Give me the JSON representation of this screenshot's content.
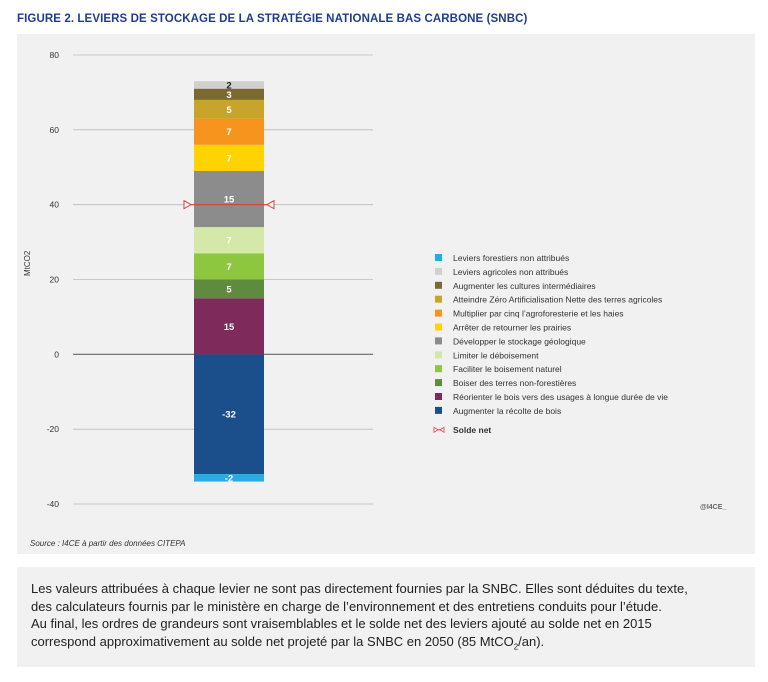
{
  "figure": {
    "title": "FIGURE 2. LEVIERS DE STOCKAGE DE LA STRATÉGIE NATIONALE BAS CARBONE (SNBC)",
    "source": "Source : I4CE à partir des données CITEPA",
    "watermark": "@I4CE_"
  },
  "paragraph": {
    "line1": "Les valeurs attribuées à chaque levier ne sont pas directement fournies par la SNBC. Elles sont déduites du texte,",
    "line2": "des calculateurs fournis par le ministère en charge de l’environnement et des entretiens conduits pour l’étude.",
    "line3": "Au final, les ordres de grandeurs sont vraisemblables et le solde net des leviers ajouté au solde net en 2015",
    "line4_pre": "correspond approximativement au solde net projeté par la SNBC en 2050 (85 MtCO",
    "line4_sub": "2",
    "line4_post": "/an)."
  },
  "chart_data": {
    "type": "bar",
    "stacked": true,
    "ylabel": "MtCO2",
    "ylim": [
      -40,
      80
    ],
    "yticks": [
      -40,
      -20,
      0,
      20,
      40,
      60,
      80
    ],
    "grid": true,
    "legend_position": "right",
    "series": [
      {
        "name": "Augmenter la récolte de bois",
        "value": -32,
        "label": "-32",
        "color": "#1a4f8b",
        "label_color": "#ffffff"
      },
      {
        "name": "Leviers forestiers non attribués",
        "value": -2,
        "label": "-2",
        "color": "#29aae1",
        "label_color": "#ffffff"
      },
      {
        "name": "Réorienter le bois vers des usages à longue durée de vie",
        "value": 15,
        "label": "15",
        "color": "#7e2a5a",
        "label_color": "#ffffff"
      },
      {
        "name": "Boiser des terres non-forestières",
        "value": 5,
        "label": "5",
        "color": "#5f8b3e",
        "label_color": "#ffffff"
      },
      {
        "name": "Faciliter le boisement naturel",
        "value": 7,
        "label": "7",
        "color": "#8dc63f",
        "label_color": "#ffffff"
      },
      {
        "name": "Limiter le déboisement",
        "value": 7,
        "label": "7",
        "color": "#d4e8a8",
        "label_color": "#ffffff"
      },
      {
        "name": "Développer le stockage géologique",
        "value": 15,
        "label": "15",
        "color": "#8c8c8c",
        "label_color": "#ffffff"
      },
      {
        "name": "Arrêter de retourner les prairies",
        "value": 7,
        "label": "7",
        "color": "#ffd200",
        "label_color": "#ffffff"
      },
      {
        "name": "Multiplier par cinq l’agroforesterie et les haies",
        "value": 7,
        "label": "7",
        "color": "#f7941d",
        "label_color": "#ffffff"
      },
      {
        "name": "Atteindre Zéro Artificialisation Nette des terres agricoles",
        "value": 5,
        "label": "5",
        "color": "#c8a52a",
        "label_color": "#ffffff"
      },
      {
        "name": "Augmenter les cultures intermédiaires",
        "value": 3,
        "label": "3",
        "color": "#7a6a2f",
        "label_color": "#ffffff"
      },
      {
        "name": "Leviers agricoles non attribués",
        "value": 2,
        "label": "2",
        "color": "#d0d0d0",
        "label_color": "#222222"
      }
    ],
    "solde_net": {
      "name": "Solde net",
      "value": 40,
      "color": "#e03c3c"
    },
    "legend": [
      {
        "label": "Leviers forestiers non attribués",
        "color": "#29aae1",
        "bold": false
      },
      {
        "label": "Leviers agricoles non attribués",
        "color": "#d0d0d0",
        "bold": false
      },
      {
        "label": "Augmenter les cultures intermédiaires",
        "color": "#7a6a2f",
        "bold": false
      },
      {
        "label": "Atteindre Zéro Artificialisation Nette des terres agricoles",
        "color": "#c8a52a",
        "bold": false
      },
      {
        "label": "Multiplier par cinq l’agroforesterie et les haies",
        "color": "#f7941d",
        "bold": false
      },
      {
        "label": "Arrêter de retourner les prairies",
        "color": "#ffd200",
        "bold": false
      },
      {
        "label": "Développer le stockage géologique",
        "color": "#8c8c8c",
        "bold": false
      },
      {
        "label": "Limiter le déboisement",
        "color": "#d4e8a8",
        "bold": false
      },
      {
        "label": "Faciliter le boisement naturel",
        "color": "#8dc63f",
        "bold": false
      },
      {
        "label": "Boiser des terres non-forestières",
        "color": "#5f8b3e",
        "bold": false
      },
      {
        "label": "Réorienter le bois vers des usages à longue durée de vie",
        "color": "#7e2a5a",
        "bold": false
      },
      {
        "label": "Augmenter la récolte de bois",
        "color": "#1a4f8b",
        "bold": false
      },
      {
        "label": "Solde net",
        "color": "#e03c3c",
        "bold": true,
        "marker": "solde"
      }
    ]
  }
}
